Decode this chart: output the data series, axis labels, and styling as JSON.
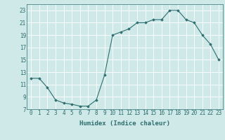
{
  "x": [
    0,
    1,
    2,
    3,
    4,
    5,
    6,
    7,
    8,
    9,
    10,
    11,
    12,
    13,
    14,
    15,
    16,
    17,
    18,
    19,
    20,
    21,
    22,
    23
  ],
  "y": [
    12,
    12,
    10.5,
    8.5,
    8,
    7.8,
    7.5,
    7.5,
    8.5,
    12.5,
    19,
    19.5,
    20,
    21,
    21,
    21.5,
    21.5,
    23,
    23,
    21.5,
    21,
    19,
    17.5,
    15
  ],
  "xlabel": "Humidex (Indice chaleur)",
  "ylim": [
    7,
    24
  ],
  "xlim": [
    -0.5,
    23.5
  ],
  "yticks": [
    7,
    9,
    11,
    13,
    15,
    17,
    19,
    21,
    23
  ],
  "xticks": [
    0,
    1,
    2,
    3,
    4,
    5,
    6,
    7,
    8,
    9,
    10,
    11,
    12,
    13,
    14,
    15,
    16,
    17,
    18,
    19,
    20,
    21,
    22,
    23
  ],
  "line_color": "#2d6e6e",
  "marker_color": "#2d6e6e",
  "bg_color": "#cfe8e8",
  "grid_color": "#ffffff",
  "tick_label_color": "#2d6e6e",
  "xlabel_color": "#2d6e6e",
  "font_size": 5.5,
  "xlabel_font_size": 6.5
}
